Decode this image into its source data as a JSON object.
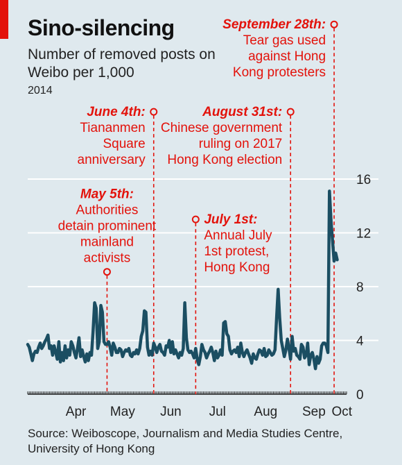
{
  "title": "Sino-silencing",
  "subtitle": "Number of removed posts on Weibo per 1,000",
  "year": "2014",
  "source": "Source: Weiboscope, Journalism and Media Studies Centre, University of Hong Kong",
  "colors": {
    "line": "#1b4e62",
    "accent": "#e3120b",
    "grid": "#ffffff",
    "background": "#dfe9ee"
  },
  "chart_data": {
    "type": "line",
    "title": "Sino-silencing",
    "ylabel": "Number of removed posts on Weibo per 1,000",
    "ylim": [
      0,
      16
    ],
    "yticks": [
      0,
      4,
      8,
      12,
      16
    ],
    "grid": true,
    "xlim": [
      "2014-03-15",
      "2014-10-06"
    ],
    "month_labels": [
      {
        "label": "Apr",
        "date": "2014-04-15"
      },
      {
        "label": "May",
        "date": "2014-05-15"
      },
      {
        "label": "Jun",
        "date": "2014-06-15"
      },
      {
        "label": "Jul",
        "date": "2014-07-15"
      },
      {
        "label": "Aug",
        "date": "2014-08-15"
      },
      {
        "label": "Sep",
        "date": "2014-09-15"
      },
      {
        "label": "Oct",
        "date": "2014-10-03"
      }
    ],
    "series": [
      {
        "values": [
          3.7,
          3.5,
          3.0,
          2.5,
          3.0,
          3.2,
          3.1,
          3.5,
          3.8,
          3.4,
          3.6,
          3.9,
          4.1,
          4.4,
          3.4,
          3.6,
          2.9,
          3.6,
          3.1,
          2.6,
          3.9,
          2.4,
          3.1,
          2.5,
          3.6,
          2.7,
          3.3,
          2.9,
          3.9,
          3.6,
          3.1,
          2.7,
          3.4,
          4.2,
          2.8,
          3.3,
          2.8,
          2.4,
          3.0,
          2.5,
          3.1,
          2.9,
          4.6,
          6.8,
          6.4,
          3.4,
          3.9,
          6.6,
          6.1,
          3.9,
          3.7,
          3.7,
          3.9,
          3.5,
          2.9,
          3.8,
          3.5,
          3.1,
          3.1,
          3.4,
          3.3,
          2.8,
          3.1,
          3.3,
          3.2,
          3.4,
          2.9,
          2.8,
          3.1,
          3.0,
          3.3,
          3.0,
          3.4,
          4.3,
          4.7,
          6.2,
          6.1,
          3.5,
          2.9,
          3.2,
          2.9,
          3.8,
          3.5,
          3.1,
          3.5,
          3.7,
          3.2,
          3.1,
          2.9,
          3.6,
          3.5,
          4.0,
          3.1,
          3.9,
          3.0,
          3.3,
          3.0,
          2.7,
          3.1,
          2.9,
          3.4,
          6.8,
          4.2,
          3.3,
          3.1,
          3.2,
          3.0,
          2.7,
          3.4,
          2.6,
          2.2,
          2.8,
          3.7,
          3.3,
          3.1,
          2.7,
          3.0,
          3.2,
          3.5,
          3.1,
          2.5,
          3.2,
          2.7,
          2.9,
          3.3,
          2.9,
          5.3,
          5.4,
          4.5,
          4.3,
          3.3,
          3.0,
          3.2,
          3.3,
          3.1,
          3.5,
          2.8,
          3.8,
          3.1,
          2.8,
          3.1,
          3.3,
          3.0,
          2.7,
          2.3,
          3.0,
          2.7,
          2.6,
          3.0,
          3.3,
          3.2,
          2.9,
          3.4,
          2.8,
          2.9,
          3.3,
          3.1,
          2.9,
          3.0,
          3.3,
          5.6,
          7.8,
          5.7,
          4.0,
          3.4,
          2.8,
          3.3,
          4.1,
          3.4,
          2.6,
          4.3,
          3.2,
          3.4,
          2.9,
          2.8,
          2.6,
          3.7,
          3.5,
          2.7,
          2.9,
          3.8,
          2.2,
          2.9,
          3.1,
          2.6,
          1.9,
          2.8,
          2.3,
          2.6,
          3.6,
          3.8,
          3.8,
          3.6,
          3.1,
          15.1,
          12.9,
          11.4,
          9.9,
          10.5,
          10.0
        ],
        "start": "2014-03-15",
        "step_days": 1
      }
    ]
  },
  "annotations": [
    {
      "date_label": "May 5th:",
      "lines": [
        "Authorities",
        "detain prominent",
        "mainland",
        "activists"
      ],
      "date": "2014-05-05",
      "value": 9.1,
      "align": "center"
    },
    {
      "date_label": "June 4th:",
      "lines": [
        "Tiananmen",
        "Square",
        "anniversary"
      ],
      "date": "2014-06-04",
      "value": 21,
      "align": "right"
    },
    {
      "date_label": "July 1st:",
      "lines": [
        "Annual July",
        "1st protest,",
        "Hong Kong"
      ],
      "date": "2014-07-01",
      "value": 13,
      "align": "left"
    },
    {
      "date_label": "August 31st:",
      "lines": [
        "Chinese government",
        "ruling on 2017",
        "Hong Kong election"
      ],
      "date": "2014-08-31",
      "value": 21,
      "align": "right"
    },
    {
      "date_label": "September 28th:",
      "lines": [
        "Tear gas used",
        "against Hong",
        "Kong protesters"
      ],
      "date": "2014-09-28",
      "value": 27.5,
      "align": "right"
    }
  ]
}
